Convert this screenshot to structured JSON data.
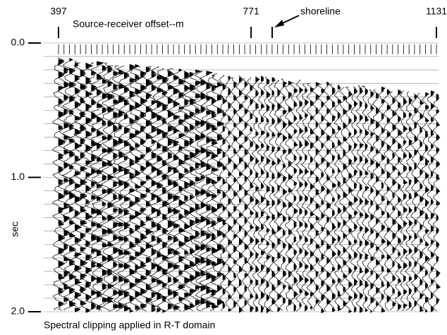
{
  "chart_data": {
    "type": "seismic",
    "xlabel": "Source-receiver offset--m",
    "ylabel": "sec",
    "caption": "Spectral clipping applied in R-T domain",
    "xlim": [
      397,
      1131
    ],
    "xticks": [
      397,
      771,
      1131
    ],
    "ylim": [
      0,
      2
    ],
    "yticks": [
      {
        "value": 0,
        "label": "0.0"
      },
      {
        "value": 1,
        "label": "1.0"
      },
      {
        "value": 2,
        "label": "2.0"
      }
    ],
    "annotations": [
      {
        "text": "shoreline",
        "x": 812
      }
    ],
    "color": "#000000"
  }
}
